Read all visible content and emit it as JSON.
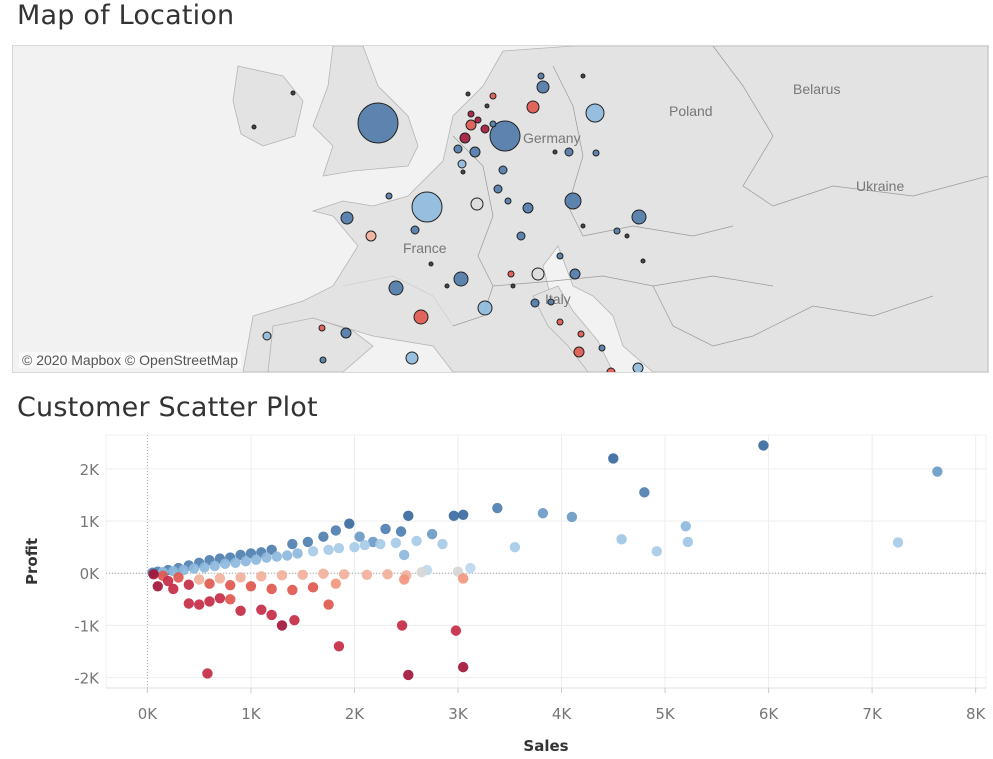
{
  "dashboard": {
    "map_title": "Map of Location",
    "scatter_title": "Customer Scatter Plot"
  },
  "map": {
    "credit": "© 2020 Mapbox © OpenStreetMap",
    "country_labels": [
      "Poland",
      "Belarus",
      "Germany",
      "Ukraine",
      "France",
      "Italy"
    ],
    "colors": {
      "land": "#e3e3e3",
      "water": "#f5f5f5",
      "border": "#9a9a9a",
      "marker_dark_blue": "#4e79a7",
      "marker_light_blue": "#8db9dd",
      "marker_red": "#e1574e",
      "marker_dark_red": "#a3163a"
    }
  },
  "chart_data": {
    "type": "scatter",
    "title": "Customer Scatter Plot",
    "xlabel": "Sales",
    "ylabel": "Profit",
    "xlim": [
      -400,
      8100
    ],
    "ylim": [
      -2200,
      2650
    ],
    "x_ticks": [
      "0K",
      "1K",
      "2K",
      "3K",
      "4K",
      "5K",
      "6K",
      "7K",
      "8K"
    ],
    "y_ticks": [
      "2K",
      "1K",
      "0K",
      "-1K",
      "-2K"
    ],
    "grid": true,
    "legend": "none",
    "color_encoding": "profit ratio, diverging red-blue",
    "points": [
      [
        4500,
        2200
      ],
      [
        5950,
        2450
      ],
      [
        7630,
        1950
      ],
      [
        4800,
        1550
      ],
      [
        3380,
        1250
      ],
      [
        3820,
        1150
      ],
      [
        4100,
        1080
      ],
      [
        5200,
        900
      ],
      [
        4580,
        650
      ],
      [
        5220,
        600
      ],
      [
        4920,
        420
      ],
      [
        7250,
        590
      ],
      [
        2960,
        1100
      ],
      [
        3050,
        1120
      ],
      [
        2520,
        1100
      ],
      [
        1950,
        950
      ],
      [
        1820,
        820
      ],
      [
        2300,
        850
      ],
      [
        2450,
        800
      ],
      [
        2750,
        750
      ],
      [
        3550,
        500
      ],
      [
        3120,
        100
      ],
      [
        2700,
        60
      ],
      [
        2480,
        350
      ],
      [
        2180,
        600
      ],
      [
        2050,
        700
      ],
      [
        1700,
        700
      ],
      [
        1550,
        600
      ],
      [
        1400,
        560
      ],
      [
        1200,
        450
      ],
      [
        1100,
        400
      ],
      [
        1000,
        380
      ],
      [
        900,
        350
      ],
      [
        800,
        300
      ],
      [
        700,
        280
      ],
      [
        600,
        250
      ],
      [
        500,
        200
      ],
      [
        400,
        150
      ],
      [
        300,
        100
      ],
      [
        200,
        60
      ],
      [
        100,
        30
      ],
      [
        50,
        10
      ],
      [
        150,
        20
      ],
      [
        250,
        40
      ],
      [
        350,
        60
      ],
      [
        450,
        90
      ],
      [
        550,
        110
      ],
      [
        650,
        140
      ],
      [
        750,
        180
      ],
      [
        850,
        200
      ],
      [
        950,
        230
      ],
      [
        1050,
        260
      ],
      [
        1150,
        300
      ],
      [
        1250,
        320
      ],
      [
        1350,
        340
      ],
      [
        1450,
        380
      ],
      [
        1600,
        420
      ],
      [
        1750,
        450
      ],
      [
        1850,
        480
      ],
      [
        2000,
        500
      ],
      [
        2100,
        540
      ],
      [
        2250,
        560
      ],
      [
        2400,
        580
      ],
      [
        2600,
        620
      ],
      [
        2850,
        560
      ],
      [
        3000,
        30
      ],
      [
        2650,
        20
      ],
      [
        2500,
        -40
      ],
      [
        2320,
        -20
      ],
      [
        2120,
        -30
      ],
      [
        1900,
        -20
      ],
      [
        1700,
        -10
      ],
      [
        1500,
        -30
      ],
      [
        1300,
        -40
      ],
      [
        1100,
        -60
      ],
      [
        900,
        -80
      ],
      [
        700,
        -100
      ],
      [
        500,
        -120
      ],
      [
        300,
        -80
      ],
      [
        150,
        -50
      ],
      [
        60,
        -20
      ],
      [
        200,
        -150
      ],
      [
        400,
        -220
      ],
      [
        600,
        -200
      ],
      [
        800,
        -230
      ],
      [
        1000,
        -250
      ],
      [
        1200,
        -300
      ],
      [
        1400,
        -320
      ],
      [
        1600,
        -270
      ],
      [
        1820,
        -200
      ],
      [
        2480,
        -120
      ],
      [
        3050,
        -100
      ],
      [
        1750,
        -600
      ],
      [
        1420,
        -900
      ],
      [
        1300,
        -1000
      ],
      [
        1200,
        -800
      ],
      [
        1100,
        -700
      ],
      [
        900,
        -720
      ],
      [
        800,
        -500
      ],
      [
        700,
        -480
      ],
      [
        600,
        -540
      ],
      [
        500,
        -600
      ],
      [
        400,
        -580
      ],
      [
        250,
        -300
      ],
      [
        100,
        -250
      ],
      [
        1850,
        -1400
      ],
      [
        2460,
        -1000
      ],
      [
        2980,
        -1100
      ],
      [
        3050,
        -1800
      ],
      [
        2520,
        -1950
      ],
      [
        580,
        -1920
      ]
    ],
    "point_colors": [
      "#3a6a9e",
      "#3a6a9e",
      "#6b9ac6",
      "#4f7fb0",
      "#4f7fb0",
      "#6b9ac6",
      "#6b9ac6",
      "#8db9dd",
      "#9ec6e6",
      "#9ec6e6",
      "#a7cbe8",
      "#a7cbe8",
      "#3a6a9e",
      "#3a6a9e",
      "#3a6a9e",
      "#3a6a9e",
      "#4f7fb0",
      "#4f7fb0",
      "#4f7fb0",
      "#6b9ac6",
      "#a7cbe8",
      "#bcd7ee",
      "#bcd7ee",
      "#8db9dd",
      "#6b9ac6",
      "#6b9ac6",
      "#4f7fb0",
      "#4f7fb0",
      "#4f7fb0",
      "#4f7fb0",
      "#4f7fb0",
      "#4f7fb0",
      "#4f7fb0",
      "#4f7fb0",
      "#4f7fb0",
      "#4f7fb0",
      "#4f7fb0",
      "#4f7fb0",
      "#4f7fb0",
      "#4f7fb0",
      "#4f7fb0",
      "#4f7fb0",
      "#8db9dd",
      "#8db9dd",
      "#8db9dd",
      "#8db9dd",
      "#8db9dd",
      "#8db9dd",
      "#8db9dd",
      "#8db9dd",
      "#8db9dd",
      "#8db9dd",
      "#8db9dd",
      "#8db9dd",
      "#8db9dd",
      "#8db9dd",
      "#a7cbe8",
      "#a7cbe8",
      "#a7cbe8",
      "#a7cbe8",
      "#a7cbe8",
      "#a7cbe8",
      "#a7cbe8",
      "#a7cbe8",
      "#a7cbe8",
      "#d6d6d6",
      "#d6d6d6",
      "#f2b09a",
      "#f2b09a",
      "#f2b09a",
      "#f2b09a",
      "#f2b09a",
      "#f2b09a",
      "#f2b09a",
      "#f2b09a",
      "#f2b09a",
      "#f2b09a",
      "#f2b09a",
      "#e1574e",
      "#e1574e",
      "#a3163a",
      "#c42b45",
      "#c42b45",
      "#e1574e",
      "#e1574e",
      "#e1574e",
      "#e1574e",
      "#e1574e",
      "#e1574e",
      "#f2967e",
      "#f2967e",
      "#f2967e",
      "#e1574e",
      "#c42b45",
      "#a3163a",
      "#c42b45",
      "#c42b45",
      "#c42b45",
      "#e1574e",
      "#c42b45",
      "#c42b45",
      "#c42b45",
      "#c42b45",
      "#c42b45",
      "#a3163a",
      "#c42b45",
      "#c42b45",
      "#c42b45",
      "#a3163a",
      "#a3163a",
      "#c42b45"
    ]
  }
}
